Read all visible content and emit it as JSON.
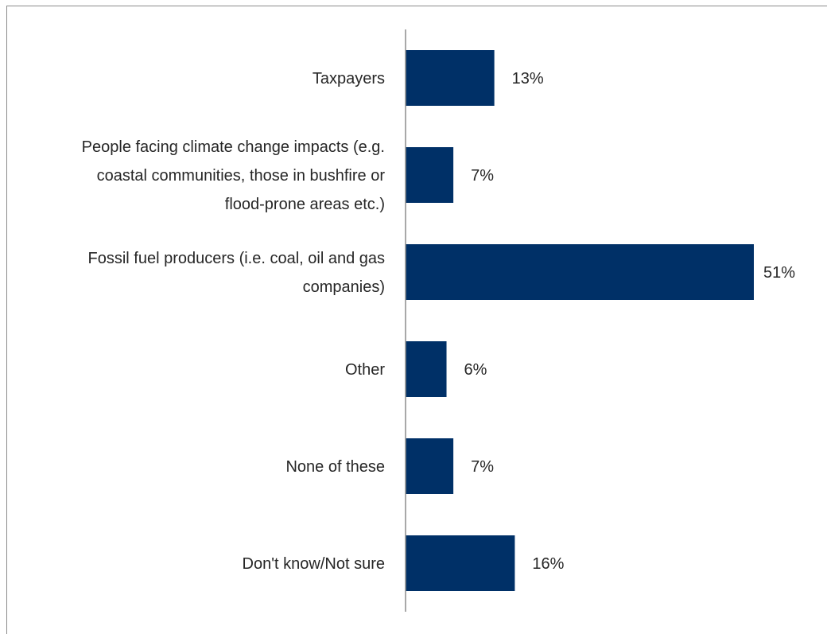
{
  "chart_data": {
    "type": "bar",
    "orientation": "horizontal",
    "categories": [
      [
        "Taxpayers"
      ],
      [
        "People facing climate change impacts (e.g.",
        "coastal communities, those in bushfire or",
        "flood-prone areas etc.)"
      ],
      [
        "Fossil fuel producers (i.e. coal, oil and gas",
        "companies)"
      ],
      [
        "Other"
      ],
      [
        "None of these"
      ],
      [
        "Don't know/Not sure"
      ]
    ],
    "values": [
      13,
      7,
      51,
      6,
      7,
      16
    ],
    "value_labels": [
      "13%",
      "7%",
      "51%",
      "6%",
      "7%",
      "16%"
    ],
    "bar_color": "#003067",
    "axis_color": "#8c8c8c",
    "text_color": "#262626",
    "xlim": [
      0,
      51
    ],
    "grid": false,
    "legend": false
  }
}
